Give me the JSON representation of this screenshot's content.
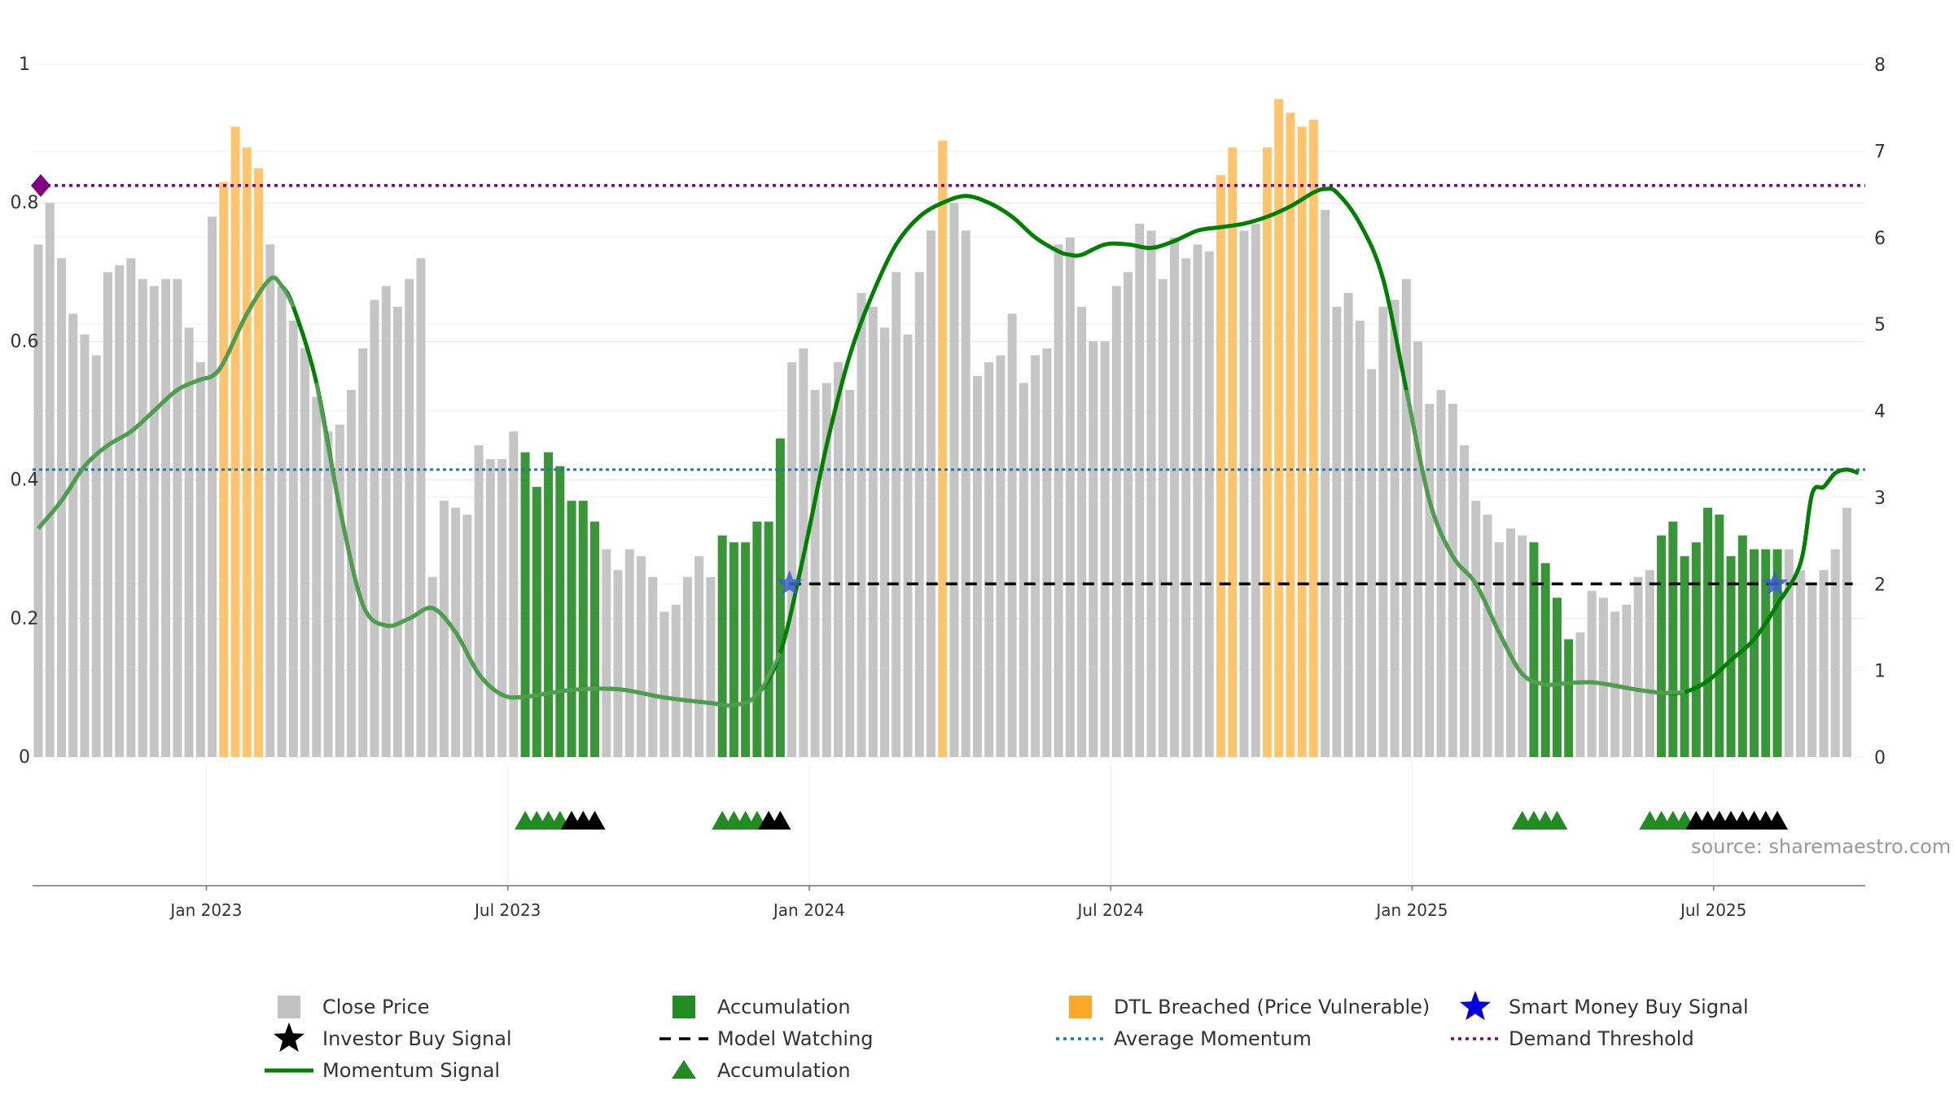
{
  "colors": {
    "close_price": "#c2c2c2",
    "accumulation": "#228b22",
    "dtl": "#ffc266",
    "momentum": "#008000",
    "avg_momentum": "#1f77b4",
    "demand_threshold": "#800080",
    "model_watching": "#000000",
    "smart_money": "#0000dd",
    "investor": "#000000",
    "grid": "#e6e6e6"
  },
  "source": "source: sharemaestro.com",
  "chart_data": {
    "type": "bar",
    "left_ticks": [
      "0",
      "0.2",
      "0.4",
      "0.6",
      "0.8",
      "1"
    ],
    "left_tick_values": [
      0,
      0.2,
      0.4,
      0.6,
      0.8,
      1
    ],
    "left_ylim": [
      0,
      1
    ],
    "right_ticks": [
      "0",
      "1",
      "2",
      "3",
      "4",
      "5",
      "6",
      "7",
      "8"
    ],
    "right_tick_values": [
      0,
      1,
      2,
      3,
      4,
      5,
      6,
      7,
      8
    ],
    "right_ylim": [
      0,
      8
    ],
    "x_ticks": [
      "Jan 2023",
      "Jul 2023",
      "Jan 2024",
      "Jul 2024",
      "Jan 2025",
      "Jul 2025"
    ],
    "x_tick_weeks": [
      14.5,
      40.5,
      66.5,
      92.5,
      118.5,
      144.5
    ],
    "week_range": [
      0,
      156.5
    ],
    "bars": [
      {
        "v": 0.74,
        "t": "c"
      },
      {
        "v": 0.8,
        "t": "c"
      },
      {
        "v": 0.72,
        "t": "c"
      },
      {
        "v": 0.64,
        "t": "c"
      },
      {
        "v": 0.61,
        "t": "c"
      },
      {
        "v": 0.58,
        "t": "c"
      },
      {
        "v": 0.7,
        "t": "c"
      },
      {
        "v": 0.71,
        "t": "c"
      },
      {
        "v": 0.72,
        "t": "c"
      },
      {
        "v": 0.69,
        "t": "c"
      },
      {
        "v": 0.68,
        "t": "c"
      },
      {
        "v": 0.69,
        "t": "c"
      },
      {
        "v": 0.69,
        "t": "c"
      },
      {
        "v": 0.62,
        "t": "c"
      },
      {
        "v": 0.57,
        "t": "c"
      },
      {
        "v": 0.78,
        "t": "c"
      },
      {
        "v": 0.83,
        "t": "d"
      },
      {
        "v": 0.91,
        "t": "d"
      },
      {
        "v": 0.88,
        "t": "d"
      },
      {
        "v": 0.85,
        "t": "d"
      },
      {
        "v": 0.74,
        "t": "c"
      },
      {
        "v": 0.68,
        "t": "c"
      },
      {
        "v": 0.63,
        "t": "c"
      },
      {
        "v": 0.59,
        "t": "c"
      },
      {
        "v": 0.52,
        "t": "c"
      },
      {
        "v": 0.47,
        "t": "c"
      },
      {
        "v": 0.48,
        "t": "c"
      },
      {
        "v": 0.53,
        "t": "c"
      },
      {
        "v": 0.59,
        "t": "c"
      },
      {
        "v": 0.66,
        "t": "c"
      },
      {
        "v": 0.68,
        "t": "c"
      },
      {
        "v": 0.65,
        "t": "c"
      },
      {
        "v": 0.69,
        "t": "c"
      },
      {
        "v": 0.72,
        "t": "c"
      },
      {
        "v": 0.26,
        "t": "c"
      },
      {
        "v": 0.37,
        "t": "c"
      },
      {
        "v": 0.36,
        "t": "c"
      },
      {
        "v": 0.35,
        "t": "c"
      },
      {
        "v": 0.45,
        "t": "c"
      },
      {
        "v": 0.43,
        "t": "c"
      },
      {
        "v": 0.43,
        "t": "c"
      },
      {
        "v": 0.47,
        "t": "c"
      },
      {
        "v": 0.44,
        "t": "a"
      },
      {
        "v": 0.39,
        "t": "a"
      },
      {
        "v": 0.44,
        "t": "a"
      },
      {
        "v": 0.42,
        "t": "a"
      },
      {
        "v": 0.37,
        "t": "a"
      },
      {
        "v": 0.37,
        "t": "a"
      },
      {
        "v": 0.34,
        "t": "a"
      },
      {
        "v": 0.3,
        "t": "c"
      },
      {
        "v": 0.27,
        "t": "c"
      },
      {
        "v": 0.3,
        "t": "c"
      },
      {
        "v": 0.29,
        "t": "c"
      },
      {
        "v": 0.26,
        "t": "c"
      },
      {
        "v": 0.21,
        "t": "c"
      },
      {
        "v": 0.22,
        "t": "c"
      },
      {
        "v": 0.26,
        "t": "c"
      },
      {
        "v": 0.29,
        "t": "c"
      },
      {
        "v": 0.26,
        "t": "c"
      },
      {
        "v": 0.32,
        "t": "a"
      },
      {
        "v": 0.31,
        "t": "a"
      },
      {
        "v": 0.31,
        "t": "a"
      },
      {
        "v": 0.34,
        "t": "a"
      },
      {
        "v": 0.34,
        "t": "a"
      },
      {
        "v": 0.46,
        "t": "a"
      },
      {
        "v": 0.57,
        "t": "c"
      },
      {
        "v": 0.59,
        "t": "c"
      },
      {
        "v": 0.53,
        "t": "c"
      },
      {
        "v": 0.54,
        "t": "c"
      },
      {
        "v": 0.57,
        "t": "c"
      },
      {
        "v": 0.53,
        "t": "c"
      },
      {
        "v": 0.67,
        "t": "c"
      },
      {
        "v": 0.65,
        "t": "c"
      },
      {
        "v": 0.62,
        "t": "c"
      },
      {
        "v": 0.7,
        "t": "c"
      },
      {
        "v": 0.61,
        "t": "c"
      },
      {
        "v": 0.7,
        "t": "c"
      },
      {
        "v": 0.76,
        "t": "c"
      },
      {
        "v": 0.89,
        "t": "d"
      },
      {
        "v": 0.8,
        "t": "c"
      },
      {
        "v": 0.76,
        "t": "c"
      },
      {
        "v": 0.55,
        "t": "c"
      },
      {
        "v": 0.57,
        "t": "c"
      },
      {
        "v": 0.58,
        "t": "c"
      },
      {
        "v": 0.64,
        "t": "c"
      },
      {
        "v": 0.54,
        "t": "c"
      },
      {
        "v": 0.58,
        "t": "c"
      },
      {
        "v": 0.59,
        "t": "c"
      },
      {
        "v": 0.74,
        "t": "c"
      },
      {
        "v": 0.75,
        "t": "c"
      },
      {
        "v": 0.65,
        "t": "c"
      },
      {
        "v": 0.6,
        "t": "c"
      },
      {
        "v": 0.6,
        "t": "c"
      },
      {
        "v": 0.68,
        "t": "c"
      },
      {
        "v": 0.7,
        "t": "c"
      },
      {
        "v": 0.77,
        "t": "c"
      },
      {
        "v": 0.76,
        "t": "c"
      },
      {
        "v": 0.69,
        "t": "c"
      },
      {
        "v": 0.75,
        "t": "c"
      },
      {
        "v": 0.72,
        "t": "c"
      },
      {
        "v": 0.74,
        "t": "c"
      },
      {
        "v": 0.73,
        "t": "c"
      },
      {
        "v": 0.84,
        "t": "d"
      },
      {
        "v": 0.88,
        "t": "d"
      },
      {
        "v": 0.76,
        "t": "c"
      },
      {
        "v": 0.77,
        "t": "c"
      },
      {
        "v": 0.88,
        "t": "d"
      },
      {
        "v": 0.95,
        "t": "d"
      },
      {
        "v": 0.93,
        "t": "d"
      },
      {
        "v": 0.91,
        "t": "d"
      },
      {
        "v": 0.92,
        "t": "d"
      },
      {
        "v": 0.79,
        "t": "c"
      },
      {
        "v": 0.65,
        "t": "c"
      },
      {
        "v": 0.67,
        "t": "c"
      },
      {
        "v": 0.63,
        "t": "c"
      },
      {
        "v": 0.56,
        "t": "c"
      },
      {
        "v": 0.65,
        "t": "c"
      },
      {
        "v": 0.66,
        "t": "c"
      },
      {
        "v": 0.69,
        "t": "c"
      },
      {
        "v": 0.6,
        "t": "c"
      },
      {
        "v": 0.51,
        "t": "c"
      },
      {
        "v": 0.53,
        "t": "c"
      },
      {
        "v": 0.51,
        "t": "c"
      },
      {
        "v": 0.45,
        "t": "c"
      },
      {
        "v": 0.37,
        "t": "c"
      },
      {
        "v": 0.35,
        "t": "c"
      },
      {
        "v": 0.31,
        "t": "c"
      },
      {
        "v": 0.33,
        "t": "c"
      },
      {
        "v": 0.32,
        "t": "c"
      },
      {
        "v": 0.31,
        "t": "a"
      },
      {
        "v": 0.28,
        "t": "a"
      },
      {
        "v": 0.23,
        "t": "a"
      },
      {
        "v": 0.17,
        "t": "a"
      },
      {
        "v": 0.18,
        "t": "c"
      },
      {
        "v": 0.24,
        "t": "c"
      },
      {
        "v": 0.23,
        "t": "c"
      },
      {
        "v": 0.21,
        "t": "c"
      },
      {
        "v": 0.22,
        "t": "c"
      },
      {
        "v": 0.26,
        "t": "c"
      },
      {
        "v": 0.27,
        "t": "c"
      },
      {
        "v": 0.32,
        "t": "a"
      },
      {
        "v": 0.34,
        "t": "a"
      },
      {
        "v": 0.29,
        "t": "a"
      },
      {
        "v": 0.31,
        "t": "a"
      },
      {
        "v": 0.36,
        "t": "a"
      },
      {
        "v": 0.35,
        "t": "a"
      },
      {
        "v": 0.29,
        "t": "a"
      },
      {
        "v": 0.32,
        "t": "a"
      },
      {
        "v": 0.3,
        "t": "a"
      },
      {
        "v": 0.3,
        "t": "a"
      },
      {
        "v": 0.3,
        "t": "a"
      },
      {
        "v": 0.3,
        "t": "c"
      },
      {
        "v": 0.27,
        "t": "c"
      },
      {
        "v": 0.25,
        "t": "c"
      },
      {
        "v": 0.27,
        "t": "c"
      },
      {
        "v": 0.3,
        "t": "c"
      },
      {
        "v": 0.36,
        "t": "c"
      }
    ],
    "momentum": [
      [
        0,
        0.33
      ],
      [
        2,
        0.37
      ],
      [
        4,
        0.42
      ],
      [
        6,
        0.45
      ],
      [
        8,
        0.47
      ],
      [
        10,
        0.5
      ],
      [
        12,
        0.53
      ],
      [
        14,
        0.545
      ],
      [
        15,
        0.55
      ],
      [
        16,
        0.57
      ],
      [
        18,
        0.64
      ],
      [
        20,
        0.69
      ],
      [
        21,
        0.68
      ],
      [
        22,
        0.65
      ],
      [
        24,
        0.54
      ],
      [
        26,
        0.36
      ],
      [
        28,
        0.22
      ],
      [
        30,
        0.19
      ],
      [
        32,
        0.2
      ],
      [
        34,
        0.215
      ],
      [
        36,
        0.18
      ],
      [
        38,
        0.12
      ],
      [
        40,
        0.09
      ],
      [
        42,
        0.087
      ],
      [
        46,
        0.097
      ],
      [
        50,
        0.098
      ],
      [
        54,
        0.086
      ],
      [
        58,
        0.078
      ],
      [
        60,
        0.075
      ],
      [
        62,
        0.09
      ],
      [
        64,
        0.15
      ],
      [
        66,
        0.29
      ],
      [
        68,
        0.45
      ],
      [
        70,
        0.58
      ],
      [
        72,
        0.67
      ],
      [
        74,
        0.74
      ],
      [
        76,
        0.78
      ],
      [
        78,
        0.8
      ],
      [
        80,
        0.81
      ],
      [
        82,
        0.8
      ],
      [
        84,
        0.78
      ],
      [
        86,
        0.75
      ],
      [
        88,
        0.73
      ],
      [
        89,
        0.725
      ],
      [
        90,
        0.725
      ],
      [
        92,
        0.74
      ],
      [
        94,
        0.74
      ],
      [
        96,
        0.735
      ],
      [
        98,
        0.745
      ],
      [
        100,
        0.76
      ],
      [
        102,
        0.765
      ],
      [
        104,
        0.77
      ],
      [
        106,
        0.78
      ],
      [
        108,
        0.795
      ],
      [
        110,
        0.815
      ],
      [
        111,
        0.82
      ],
      [
        112,
        0.815
      ],
      [
        114,
        0.77
      ],
      [
        116,
        0.69
      ],
      [
        118,
        0.53
      ],
      [
        120,
        0.37
      ],
      [
        122,
        0.29
      ],
      [
        124,
        0.25
      ],
      [
        126,
        0.18
      ],
      [
        128,
        0.12
      ],
      [
        130,
        0.105
      ],
      [
        132,
        0.107
      ],
      [
        134,
        0.108
      ],
      [
        136,
        0.103
      ],
      [
        138,
        0.097
      ],
      [
        140,
        0.093
      ],
      [
        142,
        0.094
      ],
      [
        144,
        0.11
      ],
      [
        146,
        0.14
      ],
      [
        148,
        0.17
      ],
      [
        150,
        0.22
      ],
      [
        152,
        0.28
      ],
      [
        153,
        0.38
      ],
      [
        154,
        0.39
      ],
      [
        155,
        0.41
      ],
      [
        156,
        0.415
      ],
      [
        157,
        0.41
      ]
    ],
    "momentum_faded_range": [
      0,
      23
    ],
    "momentum_faded_range_2": [
      24,
      64
    ],
    "momentum_faded_range_3": [
      118,
      142
    ],
    "average_momentum": 0.415,
    "demand_threshold": 0.825,
    "model_watching": {
      "from_week": 64.8,
      "to_week": 156.5,
      "value": 0.25
    },
    "smart_money_signals": [
      {
        "week": 64.8,
        "value": 0.25
      },
      {
        "week": 149.8,
        "value": 0.25
      }
    ],
    "triangles": {
      "accumulation": [
        42,
        43,
        44,
        45,
        59,
        60,
        61,
        62,
        128,
        129,
        130,
        131,
        139,
        140,
        141,
        142
      ],
      "investor": [
        46,
        47,
        48,
        63,
        64,
        143,
        144,
        145,
        146,
        147,
        148,
        149,
        150
      ]
    },
    "legend": [
      {
        "key": "close",
        "label": "Close Price"
      },
      {
        "key": "accum",
        "label": "Accumulation"
      },
      {
        "key": "dtl",
        "label": "DTL Breached (Price Vulnerable)"
      },
      {
        "key": "smart",
        "label": "Smart Money Buy Signal"
      },
      {
        "key": "investor",
        "label": "Investor Buy Signal"
      },
      {
        "key": "watch",
        "label": "Model Watching"
      },
      {
        "key": "avg",
        "label": "Average Momentum"
      },
      {
        "key": "demand",
        "label": "Demand Threshold"
      },
      {
        "key": "momentum",
        "label": "Momentum Signal"
      },
      {
        "key": "accum_tri",
        "label": "Accumulation"
      }
    ]
  }
}
